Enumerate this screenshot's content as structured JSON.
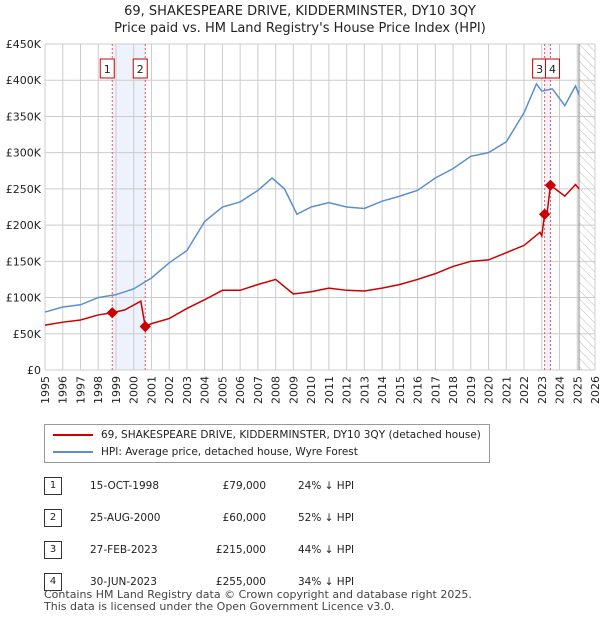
{
  "chart_data": {
    "type": "line",
    "title": "69, SHAKESPEARE DRIVE, KIDDERMINSTER, DY10 3QY",
    "subtitle": "Price paid vs. HM Land Registry's House Price Index (HPI)",
    "xlim": [
      1995,
      2026
    ],
    "ylim": [
      0,
      450000
    ],
    "x_ticks": [
      "1995",
      "1996",
      "1997",
      "1998",
      "1999",
      "2000",
      "2001",
      "2002",
      "2003",
      "2004",
      "2005",
      "2006",
      "2007",
      "2008",
      "2009",
      "2010",
      "2011",
      "2012",
      "2013",
      "2014",
      "2015",
      "2016",
      "2017",
      "2018",
      "2019",
      "2020",
      "2021",
      "2022",
      "2023",
      "2024",
      "2025",
      "2026"
    ],
    "y_ticks": [
      {
        "v": 0,
        "label": "£0"
      },
      {
        "v": 50000,
        "label": "£50K"
      },
      {
        "v": 100000,
        "label": "£100K"
      },
      {
        "v": 150000,
        "label": "£150K"
      },
      {
        "v": 200000,
        "label": "£200K"
      },
      {
        "v": 250000,
        "label": "£250K"
      },
      {
        "v": 300000,
        "label": "£300K"
      },
      {
        "v": 350000,
        "label": "£350K"
      },
      {
        "v": 400000,
        "label": "£400K"
      },
      {
        "v": 450000,
        "label": "£450K"
      }
    ],
    "grid": true,
    "series": [
      {
        "name": "69, SHAKESPEARE DRIVE, KIDDERMINSTER, DY10 3QY (detached house)",
        "color": "#cc0000",
        "x": [
          1995,
          1996,
          1997,
          1998,
          1998.79,
          1999.5,
          2000.4,
          2000.65,
          2001,
          2002,
          2003,
          2004,
          2005,
          2006,
          2007,
          2008,
          2009,
          2010,
          2011,
          2012,
          2013,
          2014,
          2015,
          2016,
          2017,
          2018,
          2019,
          2020,
          2021,
          2022,
          2022.9,
          2023.0,
          2023.16,
          2023.3,
          2023.49,
          2024.3,
          2024.9,
          2025.1
        ],
        "y": [
          62000,
          66000,
          69000,
          76000,
          79000,
          83000,
          95000,
          60000,
          64000,
          71000,
          85000,
          97000,
          110000,
          110000,
          118000,
          125000,
          105000,
          108000,
          113000,
          110000,
          109000,
          113000,
          118000,
          125000,
          133000,
          143000,
          150000,
          152000,
          162000,
          172000,
          190000,
          185000,
          215000,
          217000,
          255000,
          240000,
          256000,
          250000
        ]
      },
      {
        "name": "HPI: Average price, detached house, Wyre Forest",
        "color": "#5b8fd0",
        "x": [
          1995,
          1996,
          1997,
          1998,
          1999,
          2000,
          2001,
          2002,
          2003,
          2004,
          2005,
          2006,
          2007,
          2007.8,
          2008.5,
          2009.2,
          2010,
          2011,
          2012,
          2013,
          2014,
          2015,
          2016,
          2017,
          2018,
          2019,
          2020,
          2021,
          2022,
          2022.7,
          2023,
          2023.6,
          2024.3,
          2024.9,
          2025.1
        ],
        "y": [
          80000,
          87000,
          90000,
          100000,
          104000,
          112000,
          127000,
          148000,
          165000,
          205000,
          225000,
          232000,
          248000,
          265000,
          250000,
          215000,
          225000,
          231000,
          225000,
          223000,
          233000,
          240000,
          248000,
          265000,
          278000,
          295000,
          300000,
          315000,
          355000,
          395000,
          385000,
          388000,
          365000,
          392000,
          380000
        ]
      }
    ],
    "sales": [
      {
        "n": "1",
        "x": 1998.79,
        "y": 79000
      },
      {
        "n": "2",
        "x": 2000.65,
        "y": 60000
      },
      {
        "n": "3",
        "x": 2023.16,
        "y": 215000
      },
      {
        "n": "4",
        "x": 2023.49,
        "y": 255000
      }
    ],
    "shaded": [
      [
        1998.79,
        2000.65
      ],
      [
        2023.16,
        2023.49
      ]
    ],
    "forecast_from": 2025.1
  },
  "legend": [
    "69, SHAKESPEARE DRIVE, KIDDERMINSTER, DY10 3QY (detached house)",
    "HPI: Average price, detached house, Wyre Forest"
  ],
  "transactions": [
    {
      "n": "1",
      "date": "15-OCT-1998",
      "price": "£79,000",
      "hpi": "24% ↓ HPI"
    },
    {
      "n": "2",
      "date": "25-AUG-2000",
      "price": "£60,000",
      "hpi": "52% ↓ HPI"
    },
    {
      "n": "3",
      "date": "27-FEB-2023",
      "price": "£215,000",
      "hpi": "44% ↓ HPI"
    },
    {
      "n": "4",
      "date": "30-JUN-2023",
      "price": "£255,000",
      "hpi": "34% ↓ HPI"
    }
  ],
  "footer": [
    "Contains HM Land Registry data © Crown copyright and database right 2025.",
    "This data is licensed under the Open Government Licence v3.0."
  ]
}
